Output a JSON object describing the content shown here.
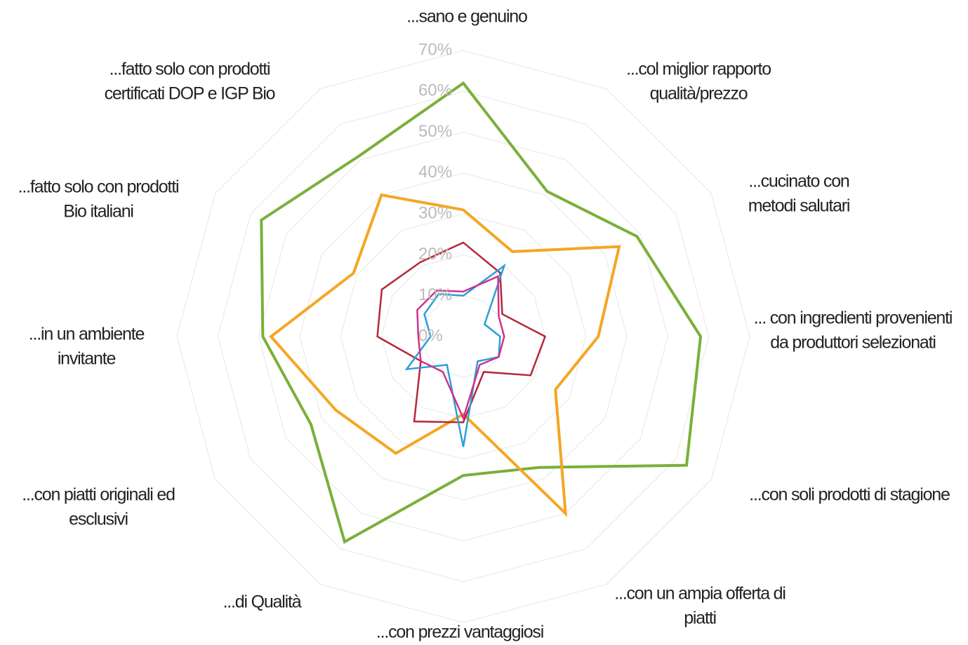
{
  "chart_data": {
    "type": "radar",
    "categories": [
      [
        "...sano e genuino"
      ],
      [
        "...col miglior rapporto",
        "qualità/prezzo"
      ],
      [
        "...cucinato con",
        "metodi salutari"
      ],
      [
        "... con ingredienti provenienti",
        "da produttori selezionati"
      ],
      [
        "...con soli prodotti di stagione"
      ],
      [
        "...con un ampia offerta di",
        "piatti"
      ],
      [
        "...con prezzi vantaggiosi"
      ],
      [
        "...di Qualità"
      ],
      [
        "...con piatti originali ed",
        "esclusivi"
      ],
      [
        "...in un ambiente",
        "invitante"
      ],
      [
        "...fatto solo con prodotti",
        "Bio italiani"
      ],
      [
        "...fatto solo con prodotti",
        "certificati DOP e IGP Bio"
      ]
    ],
    "series": [
      {
        "color": "#7ab03a",
        "values": [
          62,
          41,
          49,
          58,
          63,
          37,
          34,
          58,
          43,
          49,
          57,
          51
        ]
      },
      {
        "color": "#f5a623",
        "values": [
          31,
          24,
          44,
          33,
          26,
          50,
          19,
          33,
          36,
          47,
          31,
          40
        ]
      },
      {
        "color": "#b5283a",
        "values": [
          23,
          18,
          11,
          20,
          19,
          10,
          21,
          24,
          12,
          21,
          23,
          21
        ]
      },
      {
        "color": "#2a9fd8",
        "values": [
          10,
          20,
          6,
          9,
          10,
          7,
          27,
          8,
          16,
          8,
          11,
          12
        ]
      },
      {
        "color": "#d0338a",
        "values": [
          11,
          17,
          10,
          10,
          10,
          8,
          20,
          10,
          12,
          11,
          13,
          13
        ]
      }
    ],
    "rlim": [
      0,
      70
    ],
    "rticks": [
      {
        "value": 0,
        "label": "0%"
      },
      {
        "value": 10,
        "label": "10%"
      },
      {
        "value": 20,
        "label": "20%"
      },
      {
        "value": 30,
        "label": "30%"
      },
      {
        "value": 40,
        "label": "40%"
      },
      {
        "value": 50,
        "label": "50%"
      },
      {
        "value": 60,
        "label": "60%"
      },
      {
        "value": 70,
        "label": "70%"
      }
    ],
    "grid": true
  }
}
